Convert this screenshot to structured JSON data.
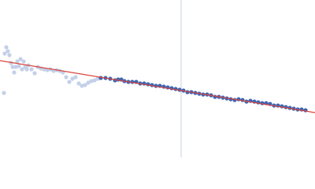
{
  "chart_data": {
    "type": "scatter",
    "xlim": [
      0,
      400
    ],
    "ylim": [
      0,
      200
    ],
    "vline": {
      "x": 230,
      "color": "#c8d0e0"
    },
    "fit": {
      "x": [
        0,
        400
      ],
      "values": [
        123,
        57
      ],
      "color": "#d9453f"
    },
    "series": [
      {
        "color": "#c3d0e8",
        "x": [
          5,
          6,
          8,
          10,
          12,
          14,
          16,
          18,
          20,
          22,
          24,
          26,
          28,
          30,
          32,
          34,
          36,
          40,
          44,
          48,
          52,
          56,
          60,
          64,
          68,
          72,
          76,
          80,
          84,
          88,
          92,
          96,
          100,
          104,
          108,
          112,
          116,
          120,
          124
        ],
        "values": [
          82,
          132,
          140,
          135,
          130,
          120,
          115,
          108,
          115,
          122,
          116,
          125,
          112,
          122,
          115,
          112,
          117,
          112,
          107,
          115,
          113,
          112,
          111,
          112,
          110,
          111,
          110,
          108,
          102,
          96,
          100,
          102,
          94,
          91,
          92,
          95,
          97,
          98,
          100
        ]
      },
      {
        "color": "#3f66b0",
        "x": [
          128,
          134,
          140,
          146,
          150,
          154,
          158,
          163,
          168,
          173,
          178,
          183,
          188,
          193,
          198,
          203,
          208,
          213,
          218,
          223,
          228,
          233,
          238,
          243,
          248,
          253,
          258,
          263,
          268,
          273,
          278,
          283,
          288,
          293,
          298,
          303,
          308,
          313,
          318,
          323,
          328,
          333,
          338,
          343,
          348,
          353,
          358,
          363,
          368,
          373,
          378,
          383,
          388
        ],
        "values": [
          101,
          101,
          100,
          98,
          99,
          99,
          97,
          96,
          96,
          96,
          94,
          94,
          93,
          92,
          91,
          91,
          90,
          89,
          88,
          87,
          86,
          85,
          83,
          83,
          82,
          81,
          80,
          80,
          79,
          77,
          77,
          76,
          75,
          74,
          73,
          74,
          73,
          71,
          72,
          71,
          70,
          69,
          69,
          68,
          66,
          66,
          65,
          64,
          63,
          62,
          61,
          61,
          60
        ]
      }
    ]
  }
}
